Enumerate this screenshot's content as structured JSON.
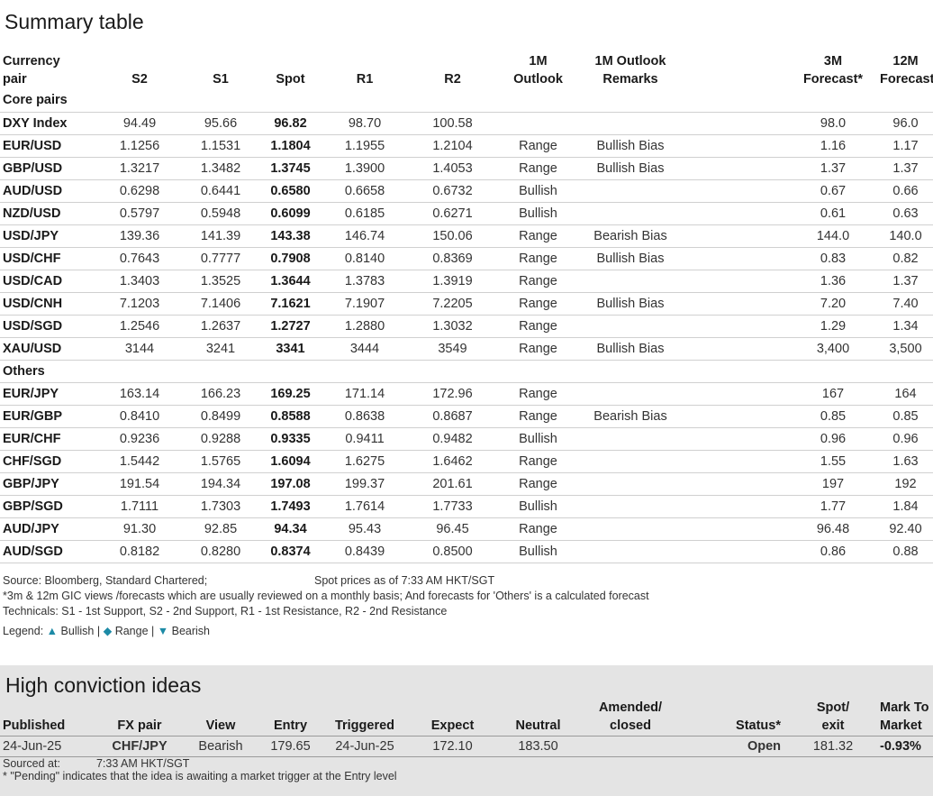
{
  "title": "Summary table",
  "columns": {
    "pair_1": "Currency",
    "pair_2": "pair",
    "s2": "S2",
    "s1": "S1",
    "spot": "Spot",
    "r1": "R1",
    "r2": "R2",
    "outlook_1": "1M",
    "outlook_2": "Outlook",
    "remarks_1": "1M Outlook",
    "remarks_2": "Remarks",
    "f3m_1": "3M",
    "f3m_2": "Forecast*",
    "f12m_1": "12M",
    "f12m_2": "Forecast*"
  },
  "sections": [
    {
      "name": "Core pairs",
      "rows": [
        {
          "pair": "DXY Index",
          "s2": "94.49",
          "s1": "95.66",
          "spot": "96.82",
          "r1": "98.70",
          "r2": "100.58",
          "outlook": "",
          "outlook_class": "",
          "remarks": "",
          "f3m": "98.0",
          "f12m": "96.0"
        },
        {
          "pair": "EUR/USD",
          "s2": "1.1256",
          "s1": "1.1531",
          "spot": "1.1804",
          "r1": "1.1955",
          "r2": "1.2104",
          "outlook": "Range",
          "outlook_class": "range",
          "remarks": "Bullish Bias",
          "f3m": "1.16",
          "f12m": "1.17"
        },
        {
          "pair": "GBP/USD",
          "s2": "1.3217",
          "s1": "1.3482",
          "spot": "1.3745",
          "r1": "1.3900",
          "r2": "1.4053",
          "outlook": "Range",
          "outlook_class": "range",
          "remarks": "Bullish Bias",
          "f3m": "1.37",
          "f12m": "1.37"
        },
        {
          "pair": "AUD/USD",
          "s2": "0.6298",
          "s1": "0.6441",
          "spot": "0.6580",
          "r1": "0.6658",
          "r2": "0.6732",
          "outlook": "Bullish",
          "outlook_class": "bullish",
          "remarks": "",
          "f3m": "0.67",
          "f12m": "0.66"
        },
        {
          "pair": "NZD/USD",
          "s2": "0.5797",
          "s1": "0.5948",
          "spot": "0.6099",
          "r1": "0.6185",
          "r2": "0.6271",
          "outlook": "Bullish",
          "outlook_class": "bullish",
          "remarks": "",
          "f3m": "0.61",
          "f12m": "0.63"
        },
        {
          "pair": "USD/JPY",
          "s2": "139.36",
          "s1": "141.39",
          "spot": "143.38",
          "r1": "146.74",
          "r2": "150.06",
          "outlook": "Range",
          "outlook_class": "range",
          "remarks": "Bearish Bias",
          "f3m": "144.0",
          "f12m": "140.0"
        },
        {
          "pair": "USD/CHF",
          "s2": "0.7643",
          "s1": "0.7777",
          "spot": "0.7908",
          "r1": "0.8140",
          "r2": "0.8369",
          "outlook": "Range",
          "outlook_class": "range",
          "remarks": "Bullish Bias",
          "f3m": "0.83",
          "f12m": "0.82"
        },
        {
          "pair": "USD/CAD",
          "s2": "1.3403",
          "s1": "1.3525",
          "spot": "1.3644",
          "r1": "1.3783",
          "r2": "1.3919",
          "outlook": "Range",
          "outlook_class": "range",
          "remarks": "",
          "f3m": "1.36",
          "f12m": "1.37"
        },
        {
          "pair": "USD/CNH",
          "s2": "7.1203",
          "s1": "7.1406",
          "spot": "7.1621",
          "r1": "7.1907",
          "r2": "7.2205",
          "outlook": "Range",
          "outlook_class": "range",
          "remarks": "Bullish Bias",
          "f3m": "7.20",
          "f12m": "7.40"
        },
        {
          "pair": "USD/SGD",
          "s2": "1.2546",
          "s1": "1.2637",
          "spot": "1.2727",
          "r1": "1.2880",
          "r2": "1.3032",
          "outlook": "Range",
          "outlook_class": "range",
          "remarks": "",
          "f3m": "1.29",
          "f12m": "1.34"
        },
        {
          "pair": "XAU/USD",
          "s2": "3144",
          "s1": "3241",
          "spot": "3341",
          "r1": "3444",
          "r2": "3549",
          "outlook": "Range",
          "outlook_class": "range",
          "remarks": "Bullish Bias",
          "f3m": "3,400",
          "f12m": "3,500"
        }
      ]
    },
    {
      "name": "Others",
      "rows": [
        {
          "pair": "EUR/JPY",
          "s2": "163.14",
          "s1": "166.23",
          "spot": "169.25",
          "r1": "171.14",
          "r2": "172.96",
          "outlook": "Range",
          "outlook_class": "range",
          "remarks": "",
          "f3m": "167",
          "f12m": "164"
        },
        {
          "pair": "EUR/GBP",
          "s2": "0.8410",
          "s1": "0.8499",
          "spot": "0.8588",
          "r1": "0.8638",
          "r2": "0.8687",
          "outlook": "Range",
          "outlook_class": "range",
          "remarks": "Bearish Bias",
          "f3m": "0.85",
          "f12m": "0.85"
        },
        {
          "pair": "EUR/CHF",
          "s2": "0.9236",
          "s1": "0.9288",
          "spot": "0.9335",
          "r1": "0.9411",
          "r2": "0.9482",
          "outlook": "Bullish",
          "outlook_class": "bullish",
          "remarks": "",
          "f3m": "0.96",
          "f12m": "0.96"
        },
        {
          "pair": "CHF/SGD",
          "s2": "1.5442",
          "s1": "1.5765",
          "spot": "1.6094",
          "r1": "1.6275",
          "r2": "1.6462",
          "outlook": "Range",
          "outlook_class": "range",
          "remarks": "",
          "f3m": "1.55",
          "f12m": "1.63"
        },
        {
          "pair": "GBP/JPY",
          "s2": "191.54",
          "s1": "194.34",
          "spot": "197.08",
          "r1": "199.37",
          "r2": "201.61",
          "outlook": "Range",
          "outlook_class": "range",
          "remarks": "",
          "f3m": "197",
          "f12m": "192"
        },
        {
          "pair": "GBP/SGD",
          "s2": "1.7111",
          "s1": "1.7303",
          "spot": "1.7493",
          "r1": "1.7614",
          "r2": "1.7733",
          "outlook": "Bullish",
          "outlook_class": "bullish",
          "remarks": "",
          "f3m": "1.77",
          "f12m": "1.84"
        },
        {
          "pair": "AUD/JPY",
          "s2": "91.30",
          "s1": "92.85",
          "spot": "94.34",
          "r1": "95.43",
          "r2": "96.45",
          "outlook": "Range",
          "outlook_class": "range",
          "remarks": "",
          "f3m": "96.48",
          "f12m": "92.40"
        },
        {
          "pair": "AUD/SGD",
          "s2": "0.8182",
          "s1": "0.8280",
          "spot": "0.8374",
          "r1": "0.8439",
          "r2": "0.8500",
          "outlook": "Bullish",
          "outlook_class": "bullish",
          "remarks": "",
          "f3m": "0.86",
          "f12m": "0.88"
        }
      ]
    }
  ],
  "notes": {
    "source": "Source: Bloomberg, Standard Chartered;",
    "spot_as_of": "Spot prices as of 7:33 AM HKT/SGT",
    "forecast_note": "*3m & 12m GIC views /forecasts which are usually reviewed on a monthly basis; And forecasts for 'Others' is a calculated forecast",
    "technicals": "Technicals: S1 - 1st Support, S2 - 2nd Support, R1 - 1st Resistance, R2 - 2nd Resistance",
    "legend_label": "Legend:",
    "legend_bullish": "Bullish",
    "legend_range": "Range",
    "legend_bearish": "Bearish",
    "legend_sep": "|"
  },
  "hci": {
    "title": "High conviction ideas",
    "headers": {
      "published": "Published",
      "pair": "FX pair",
      "view": "View",
      "entry": "Entry",
      "triggered": "Triggered",
      "expect": "Expect",
      "neutral": "Neutral",
      "amended_1": "Amended/",
      "amended_2": "closed",
      "status": "Status*",
      "spot_1": "Spot/",
      "spot_2": "exit",
      "mtm_1": "Mark To",
      "mtm_2": "Market"
    },
    "row": {
      "published": "24-Jun-25",
      "pair": "CHF/JPY",
      "view": "Bearish",
      "entry": "179.65",
      "triggered": "24-Jun-25",
      "expect": "172.10",
      "neutral": "183.50",
      "amended": "",
      "status": "Open",
      "spot": "181.32",
      "mtm": "-0.93%"
    },
    "sourced_label": "Sourced at:",
    "sourced_time": "7:33 AM HKT/SGT",
    "pending_note": "* \"Pending\" indicates that the idea is awaiting a market trigger at the Entry level"
  },
  "colors": {
    "range": "#e3a33c",
    "bullish": "#2a8a2a",
    "bearish": "#d12a2a",
    "legend_marker": "#1c8aa6",
    "hci_background": "#e4e4e4"
  }
}
